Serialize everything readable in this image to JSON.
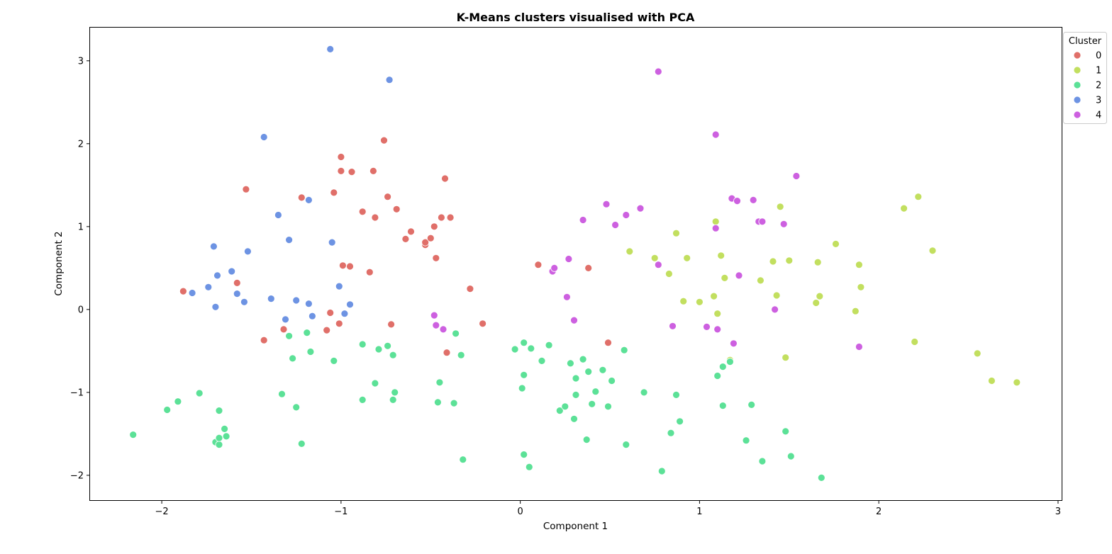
{
  "chart_data": {
    "type": "scatter",
    "title": "K-Means clusters visualised with PCA",
    "xlabel": "Component 1",
    "ylabel": "Component 2",
    "xlim": [
      -2.4,
      3.02
    ],
    "ylim": [
      -2.3,
      3.4
    ],
    "xticks": [
      -2,
      -1,
      0,
      1,
      2,
      3
    ],
    "yticks": [
      -2,
      -1,
      0,
      1,
      2,
      3
    ],
    "grid": false,
    "legend": {
      "title": "Cluster",
      "placement": "top-right, outside plot"
    },
    "series": [
      {
        "name": "0",
        "color": "#e06f69",
        "points": [
          [
            -1.88,
            0.22
          ],
          [
            -1.58,
            0.32
          ],
          [
            -1.53,
            1.45
          ],
          [
            -1.43,
            -0.37
          ],
          [
            -1.32,
            -0.24
          ],
          [
            -1.22,
            1.35
          ],
          [
            -1.08,
            -0.25
          ],
          [
            -1.06,
            -0.04
          ],
          [
            -1.04,
            1.41
          ],
          [
            -1.01,
            -0.17
          ],
          [
            -1.0,
            1.67
          ],
          [
            -1.0,
            1.84
          ],
          [
            -0.99,
            0.53
          ],
          [
            -0.95,
            0.52
          ],
          [
            -0.94,
            1.66
          ],
          [
            -0.88,
            1.18
          ],
          [
            -0.84,
            0.45
          ],
          [
            -0.82,
            1.67
          ],
          [
            -0.81,
            1.11
          ],
          [
            -0.76,
            2.04
          ],
          [
            -0.74,
            1.36
          ],
          [
            -0.72,
            -0.18
          ],
          [
            -0.69,
            1.21
          ],
          [
            -0.64,
            0.85
          ],
          [
            -0.61,
            0.94
          ],
          [
            -0.53,
            0.78
          ],
          [
            -0.53,
            0.81
          ],
          [
            -0.5,
            0.86
          ],
          [
            -0.48,
            1.0
          ],
          [
            -0.47,
            0.62
          ],
          [
            -0.44,
            1.11
          ],
          [
            -0.42,
            1.58
          ],
          [
            -0.41,
            -0.52
          ],
          [
            -0.39,
            1.11
          ],
          [
            -0.28,
            0.25
          ],
          [
            -0.21,
            -0.17
          ],
          [
            0.1,
            0.54
          ],
          [
            0.38,
            0.5
          ],
          [
            0.49,
            -0.4
          ]
        ]
      },
      {
        "name": "1",
        "color": "#c2df5f",
        "points": [
          [
            0.61,
            0.7
          ],
          [
            0.75,
            0.62
          ],
          [
            0.83,
            0.43
          ],
          [
            0.87,
            0.92
          ],
          [
            0.91,
            0.1
          ],
          [
            0.93,
            0.62
          ],
          [
            1.0,
            0.09
          ],
          [
            1.08,
            0.16
          ],
          [
            1.09,
            1.06
          ],
          [
            1.1,
            -0.05
          ],
          [
            1.12,
            0.65
          ],
          [
            1.14,
            0.38
          ],
          [
            1.17,
            -0.61
          ],
          [
            1.41,
            0.58
          ],
          [
            1.43,
            0.17
          ],
          [
            1.45,
            1.24
          ],
          [
            1.34,
            0.35
          ],
          [
            1.48,
            -0.58
          ],
          [
            1.5,
            0.59
          ],
          [
            1.65,
            0.08
          ],
          [
            1.66,
            0.57
          ],
          [
            1.67,
            0.16
          ],
          [
            1.76,
            0.79
          ],
          [
            1.87,
            -0.02
          ],
          [
            1.89,
            0.54
          ],
          [
            1.9,
            0.27
          ],
          [
            2.14,
            1.22
          ],
          [
            2.2,
            -0.39
          ],
          [
            2.22,
            1.36
          ],
          [
            2.3,
            0.71
          ],
          [
            2.55,
            -0.53
          ],
          [
            2.63,
            -0.86
          ],
          [
            2.77,
            -0.88
          ]
        ]
      },
      {
        "name": "2",
        "color": "#5ce197",
        "points": [
          [
            -2.16,
            -1.51
          ],
          [
            -1.97,
            -1.21
          ],
          [
            -1.91,
            -1.11
          ],
          [
            -1.79,
            -1.01
          ],
          [
            -1.7,
            -1.6
          ],
          [
            -1.68,
            -1.22
          ],
          [
            -1.68,
            -1.63
          ],
          [
            -1.68,
            -1.55
          ],
          [
            -1.65,
            -1.44
          ],
          [
            -1.64,
            -1.53
          ],
          [
            -1.33,
            -1.02
          ],
          [
            -1.29,
            -0.32
          ],
          [
            -1.27,
            -0.59
          ],
          [
            -1.25,
            -1.18
          ],
          [
            -1.22,
            -1.62
          ],
          [
            -1.19,
            -0.28
          ],
          [
            -1.17,
            -0.51
          ],
          [
            -1.04,
            -0.62
          ],
          [
            -0.88,
            -0.42
          ],
          [
            -0.88,
            -1.09
          ],
          [
            -0.81,
            -0.89
          ],
          [
            -0.79,
            -0.48
          ],
          [
            -0.74,
            -0.44
          ],
          [
            -0.71,
            -0.55
          ],
          [
            -0.71,
            -1.09
          ],
          [
            -0.7,
            -1.0
          ],
          [
            -0.46,
            -1.12
          ],
          [
            -0.45,
            -0.88
          ],
          [
            -0.37,
            -1.13
          ],
          [
            -0.36,
            -0.29
          ],
          [
            -0.33,
            -0.55
          ],
          [
            -0.32,
            -1.81
          ],
          [
            -0.03,
            -0.48
          ],
          [
            0.01,
            -0.95
          ],
          [
            0.02,
            -0.4
          ],
          [
            0.02,
            -0.79
          ],
          [
            0.02,
            -1.75
          ],
          [
            0.05,
            -1.9
          ],
          [
            0.06,
            -0.47
          ],
          [
            0.12,
            -0.62
          ],
          [
            0.16,
            -0.43
          ],
          [
            0.22,
            -1.22
          ],
          [
            0.25,
            -1.17
          ],
          [
            0.28,
            -0.65
          ],
          [
            0.3,
            -1.32
          ],
          [
            0.31,
            -1.03
          ],
          [
            0.31,
            -0.83
          ],
          [
            0.35,
            -0.6
          ],
          [
            0.37,
            -1.57
          ],
          [
            0.38,
            -0.75
          ],
          [
            0.4,
            -1.14
          ],
          [
            0.42,
            -0.99
          ],
          [
            0.46,
            -0.73
          ],
          [
            0.49,
            -1.17
          ],
          [
            0.51,
            -0.86
          ],
          [
            0.58,
            -0.49
          ],
          [
            0.59,
            -1.63
          ],
          [
            0.69,
            -1.0
          ],
          [
            0.79,
            -1.95
          ],
          [
            0.84,
            -1.49
          ],
          [
            0.87,
            -1.03
          ],
          [
            0.89,
            -1.35
          ],
          [
            1.1,
            -0.8
          ],
          [
            1.13,
            -0.69
          ],
          [
            1.13,
            -1.16
          ],
          [
            1.17,
            -0.63
          ],
          [
            1.26,
            -1.58
          ],
          [
            1.29,
            -1.15
          ],
          [
            1.35,
            -1.83
          ],
          [
            1.48,
            -1.47
          ],
          [
            1.51,
            -1.77
          ],
          [
            1.68,
            -2.03
          ]
        ]
      },
      {
        "name": "3",
        "color": "#6d93e3",
        "points": [
          [
            -1.83,
            0.2
          ],
          [
            -1.74,
            0.27
          ],
          [
            -1.71,
            0.76
          ],
          [
            -1.7,
            0.03
          ],
          [
            -1.69,
            0.41
          ],
          [
            -1.61,
            0.46
          ],
          [
            -1.58,
            0.19
          ],
          [
            -1.54,
            0.09
          ],
          [
            -1.52,
            0.7
          ],
          [
            -1.43,
            2.08
          ],
          [
            -1.39,
            0.13
          ],
          [
            -1.35,
            1.14
          ],
          [
            -1.31,
            -0.12
          ],
          [
            -1.29,
            0.84
          ],
          [
            -1.25,
            0.11
          ],
          [
            -1.18,
            1.32
          ],
          [
            -1.18,
            0.07
          ],
          [
            -1.16,
            -0.08
          ],
          [
            -1.06,
            3.14
          ],
          [
            -1.05,
            0.81
          ],
          [
            -1.01,
            0.28
          ],
          [
            -0.98,
            -0.05
          ],
          [
            -0.95,
            0.06
          ],
          [
            -0.73,
            2.77
          ]
        ]
      },
      {
        "name": "4",
        "color": "#cd60e0",
        "points": [
          [
            -0.48,
            -0.07
          ],
          [
            -0.47,
            -0.19
          ],
          [
            -0.43,
            -0.24
          ],
          [
            0.18,
            0.46
          ],
          [
            0.19,
            0.5
          ],
          [
            0.26,
            0.15
          ],
          [
            0.27,
            0.61
          ],
          [
            0.3,
            -0.13
          ],
          [
            0.35,
            1.08
          ],
          [
            0.48,
            1.27
          ],
          [
            0.53,
            1.02
          ],
          [
            0.59,
            1.14
          ],
          [
            0.67,
            1.22
          ],
          [
            0.77,
            2.87
          ],
          [
            0.77,
            0.54
          ],
          [
            0.85,
            -0.2
          ],
          [
            1.04,
            -0.21
          ],
          [
            1.09,
            2.11
          ],
          [
            1.09,
            0.98
          ],
          [
            1.1,
            -0.24
          ],
          [
            1.18,
            1.34
          ],
          [
            1.19,
            -0.41
          ],
          [
            1.21,
            1.31
          ],
          [
            1.22,
            0.41
          ],
          [
            1.3,
            1.32
          ],
          [
            1.33,
            1.06
          ],
          [
            1.35,
            1.06
          ],
          [
            1.42,
            0.0
          ],
          [
            1.47,
            1.03
          ],
          [
            1.54,
            1.61
          ],
          [
            1.89,
            -0.45
          ]
        ]
      }
    ]
  }
}
